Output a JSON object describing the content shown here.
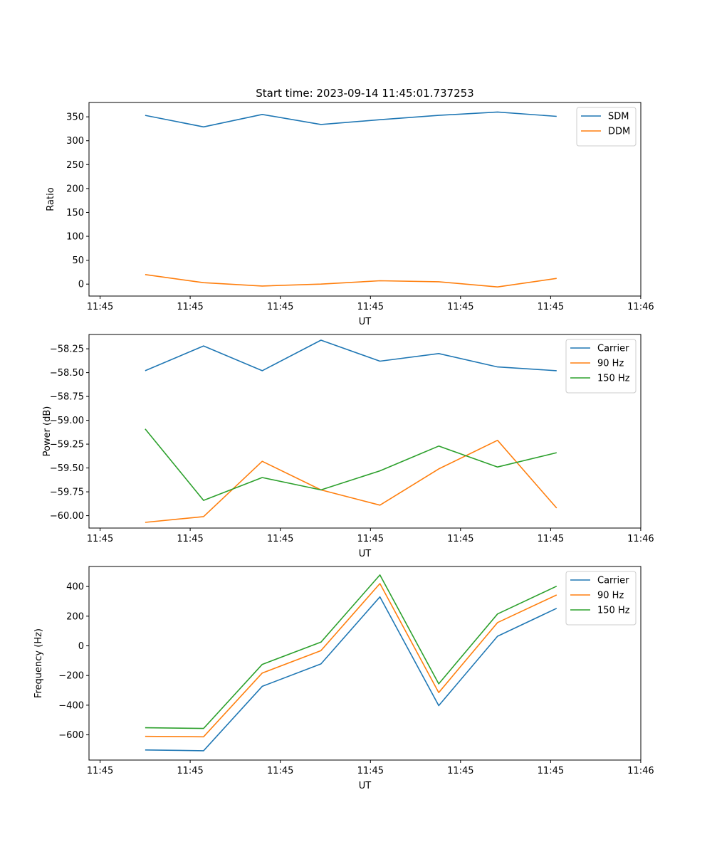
{
  "figure_title": "Start time: 2023-09-14 11:45:01.737253",
  "chart_data": [
    {
      "type": "line",
      "ylabel": "Ratio",
      "xlabel": "UT",
      "x_ticks": [
        "11:45",
        "11:45",
        "11:45",
        "11:45",
        "11:45",
        "11:45",
        "11:46"
      ],
      "ylim": [
        -25,
        380
      ],
      "yticks": [
        0,
        50,
        100,
        150,
        200,
        250,
        300,
        350
      ],
      "ytick_labels": [
        "0",
        "50",
        "100",
        "150",
        "200",
        "250",
        "300",
        "350"
      ],
      "legend_position": "top-right",
      "series": [
        {
          "name": "SDM",
          "color": "#1f77b4",
          "values": [
            353,
            329,
            355,
            334,
            344,
            353,
            360,
            351
          ]
        },
        {
          "name": "DDM",
          "color": "#ff7f0e",
          "values": [
            20,
            3,
            -4,
            0,
            7,
            5,
            -6,
            12
          ]
        }
      ]
    },
    {
      "type": "line",
      "ylabel": "Power (dB)",
      "xlabel": "UT",
      "x_ticks": [
        "11:45",
        "11:45",
        "11:45",
        "11:45",
        "11:45",
        "11:45",
        "11:46"
      ],
      "ylim": [
        -60.13,
        -58.1
      ],
      "yticks": [
        -60.0,
        -59.75,
        -59.5,
        -59.25,
        -59.0,
        -58.75,
        -58.5,
        -58.25
      ],
      "ytick_labels": [
        "−60.00",
        "−59.75",
        "−59.50",
        "−59.25",
        "−59.00",
        "−58.75",
        "−58.50",
        "−58.25"
      ],
      "legend_position": "top-right",
      "series": [
        {
          "name": "Carrier",
          "color": "#1f77b4",
          "values": [
            -58.48,
            -58.22,
            -58.48,
            -58.16,
            -58.38,
            -58.3,
            -58.44,
            -58.48
          ]
        },
        {
          "name": "90 Hz",
          "color": "#ff7f0e",
          "values": [
            -60.07,
            -60.01,
            -59.43,
            -59.73,
            -59.89,
            -59.51,
            -59.21,
            -59.92
          ]
        },
        {
          "name": "150 Hz",
          "color": "#2ca02c",
          "values": [
            -59.09,
            -59.84,
            -59.6,
            -59.73,
            -59.53,
            -59.27,
            -59.49,
            -59.34
          ]
        }
      ]
    },
    {
      "type": "line",
      "ylabel": "Frequency (Hz)",
      "xlabel": "UT",
      "x_ticks": [
        "11:45",
        "11:45",
        "11:45",
        "11:45",
        "11:45",
        "11:45",
        "11:46"
      ],
      "ylim": [
        -770,
        535
      ],
      "yticks": [
        -600,
        -400,
        -200,
        0,
        200,
        400
      ],
      "ytick_labels": [
        "−600",
        "−400",
        "−200",
        "0",
        "200",
        "400"
      ],
      "legend_position": "top-right",
      "series": [
        {
          "name": "Carrier",
          "color": "#1f77b4",
          "values": [
            -702,
            -707,
            -273,
            -122,
            330,
            -403,
            65,
            253
          ]
        },
        {
          "name": "90 Hz",
          "color": "#ff7f0e",
          "values": [
            -610,
            -613,
            -183,
            -32,
            420,
            -315,
            157,
            343
          ]
        },
        {
          "name": "150 Hz",
          "color": "#2ca02c",
          "values": [
            -552,
            -557,
            -125,
            25,
            478,
            -256,
            215,
            402
          ]
        }
      ]
    }
  ]
}
